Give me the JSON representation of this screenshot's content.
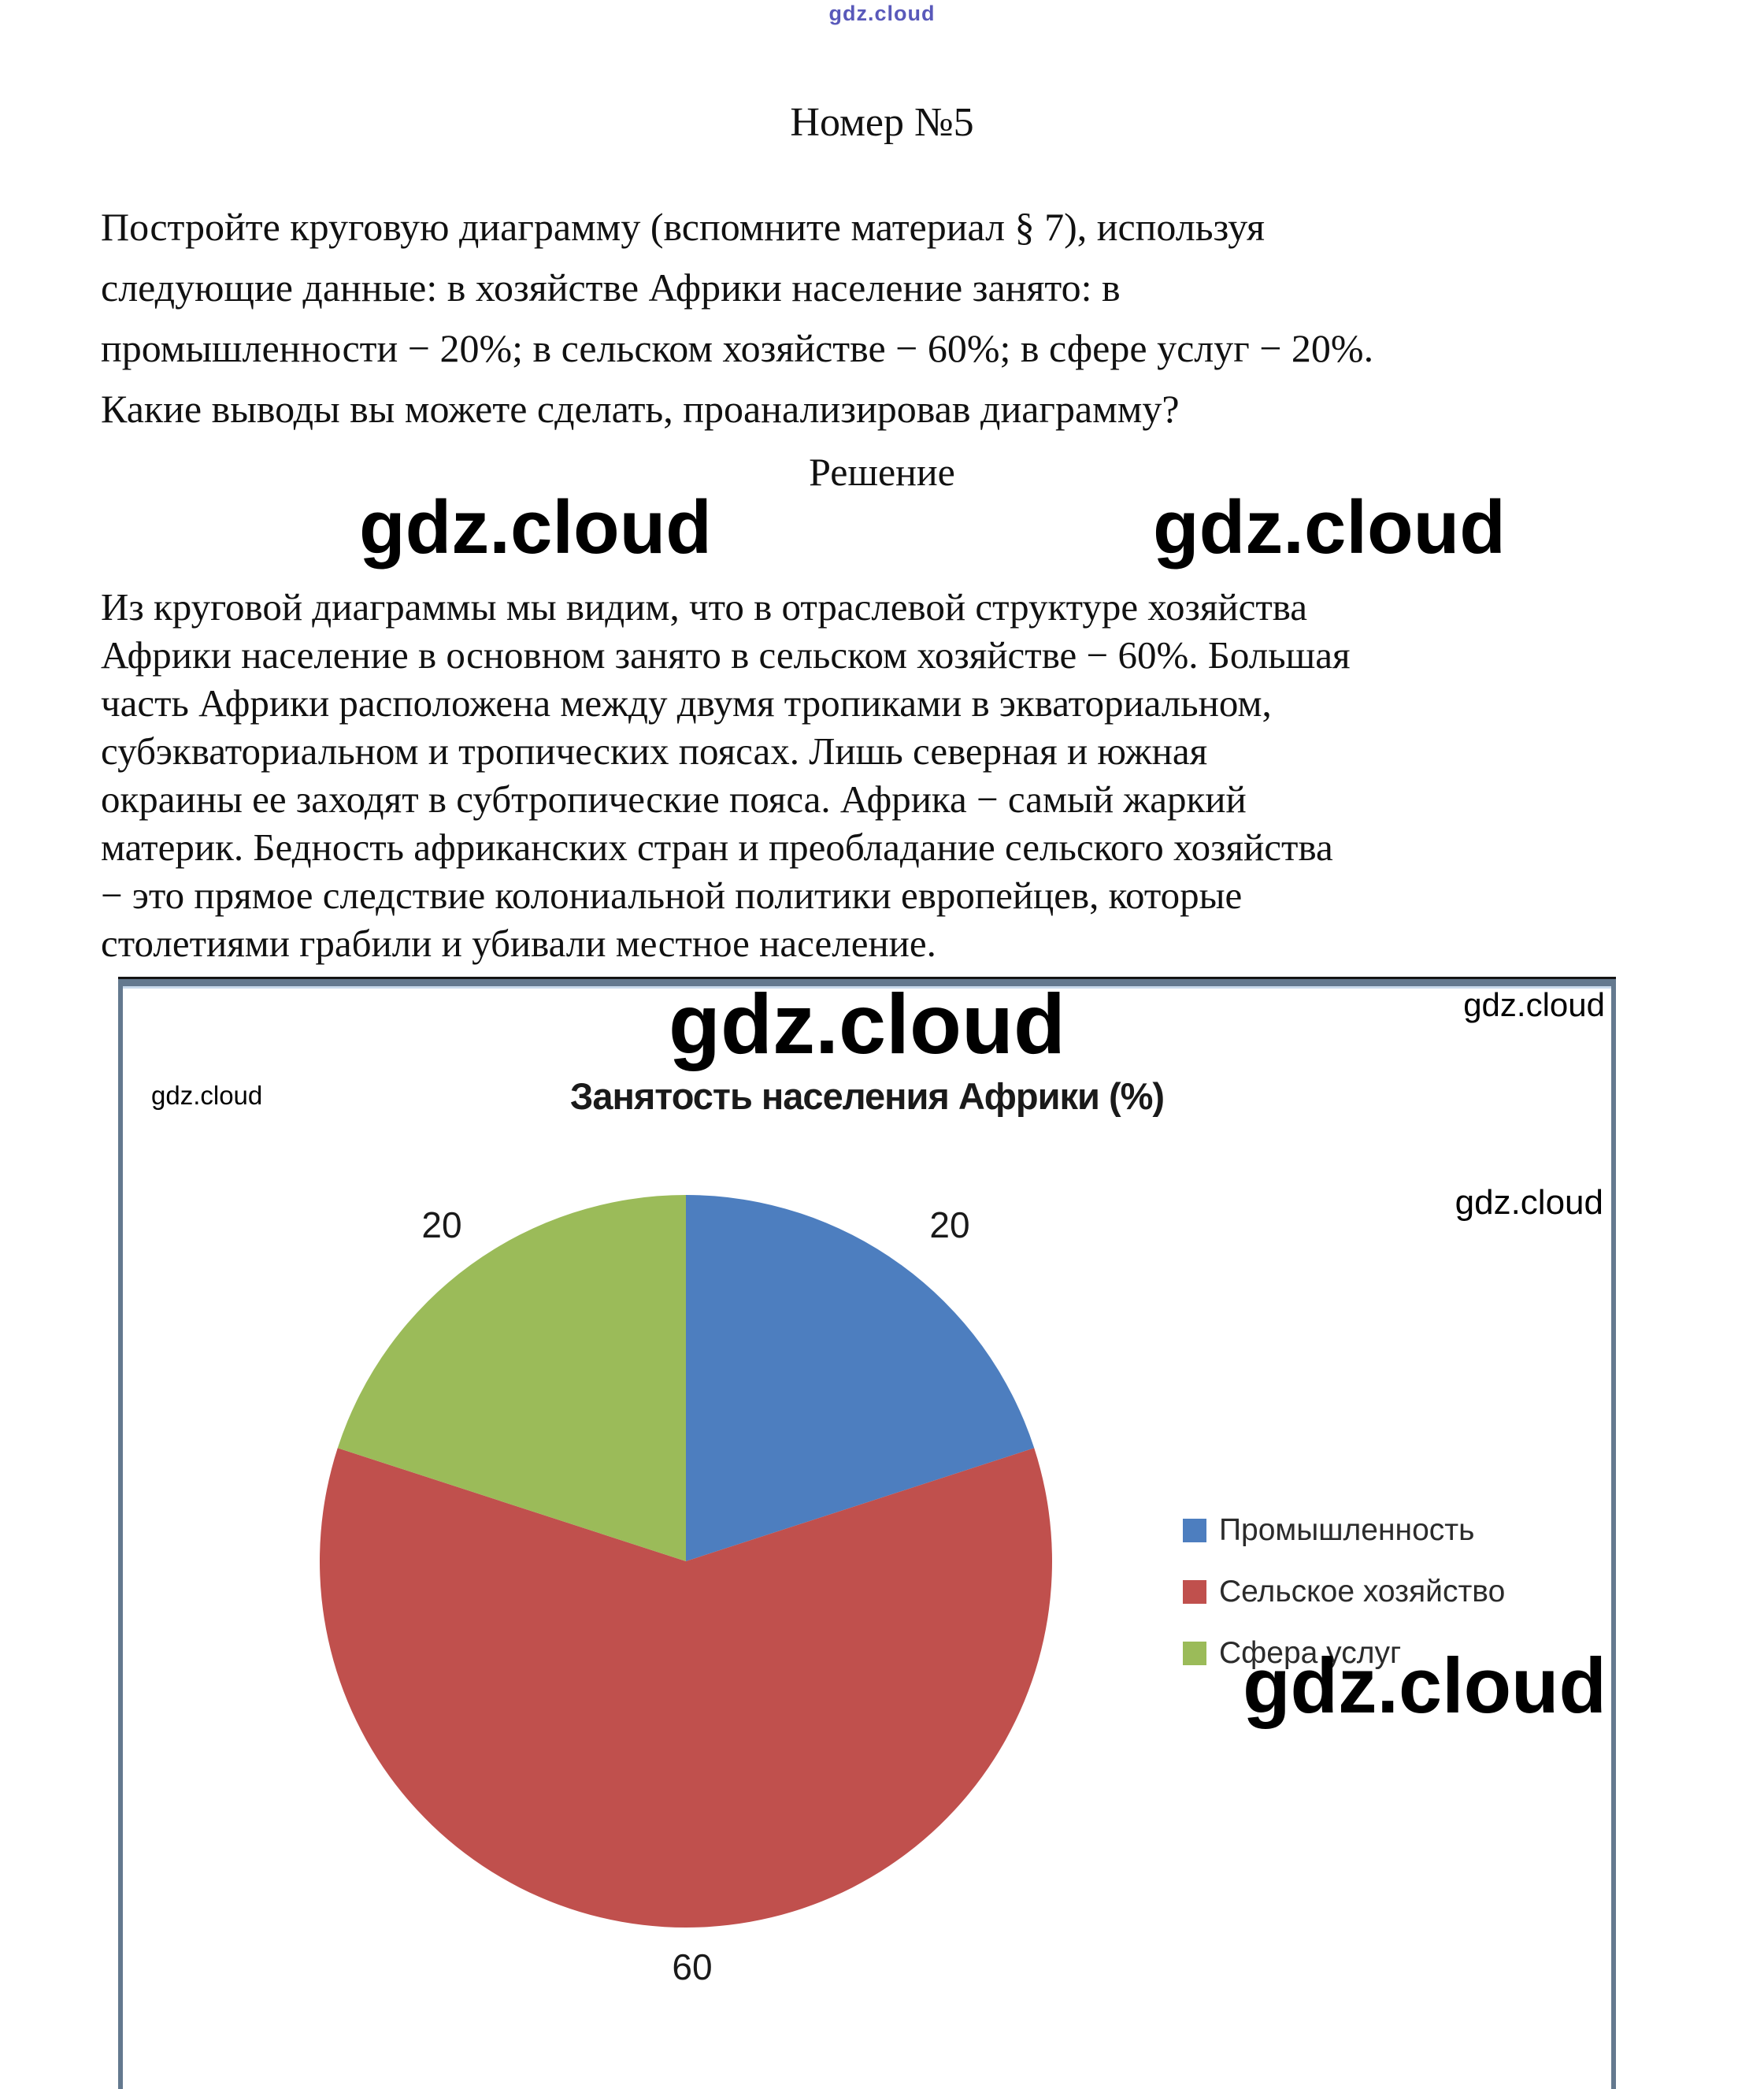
{
  "watermark_text": "gdz.cloud",
  "page": {
    "title": "Номер №5",
    "solution_heading": "Решение"
  },
  "question": {
    "lines": [
      "Постройте круговую диаграмму (вспомните материал § 7), используя",
      "следующие данные: в хозяйстве Африки население занято: в",
      "промышленности − 20%; в сельском хозяйстве − 60%; в сфере услуг − 20%.",
      "Какие выводы вы можете сделать, проанализировав диаграмму?"
    ]
  },
  "solution": {
    "lines": [
      "Из круговой диаграммы мы видим, что в отраслевой структуре хозяйства",
      "Африки население в основном занято в сельском хозяйстве − 60%. Большая",
      "часть Африки расположена между двумя тропиками в экваториальном,",
      "субэкваториальном и тропических поясах. Лишь северная и южная",
      "окраины ее заходят в субтропические пояса. Африка − самый жаркий",
      "материк. Бедность африканских стран и преобладание сельского хозяйства",
      "− это прямое следствие колониальной политики европейцев, которые",
      "столетиями грабили и убивали местное население."
    ]
  },
  "chart_data": {
    "type": "pie",
    "title": "Занятость населения Африки (%)",
    "labels": [
      "Промышленность",
      "Сельское хозяйство",
      "Сфера услуг"
    ],
    "values": [
      20,
      60,
      20
    ],
    "colors": [
      "#4d7ebf",
      "#c0504d",
      "#9bbb59"
    ],
    "legend_position": "right",
    "start_angle_deg": 0,
    "direction": "clockwise",
    "data_labels_shown": true
  }
}
